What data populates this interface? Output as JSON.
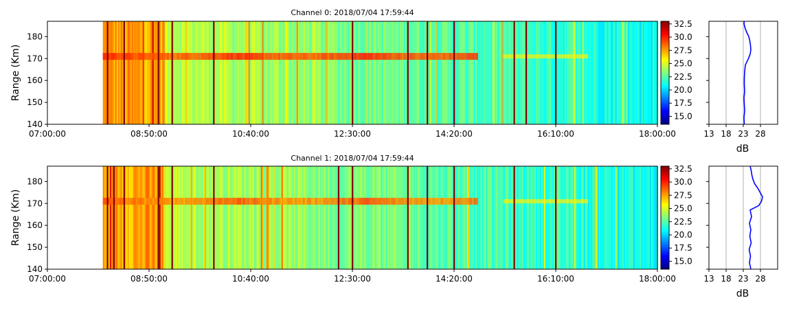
{
  "figure": {
    "colors": {
      "frame": "#000000",
      "grid": "#b0b0b0",
      "profile_line": "#0000ff",
      "background": "#ffffff"
    }
  },
  "chart_data": [
    {
      "type": "heatmap",
      "title": "Channel 0: 2018/07/04 17:59:44",
      "xlabel": "",
      "ylabel": "Range (Km)",
      "x_ticks": [
        "07:00:00",
        "08:50:00",
        "10:40:00",
        "12:30:00",
        "14:20:00",
        "16:10:00",
        "18:00:00"
      ],
      "x_range": [
        "07:00:00",
        "18:00:00"
      ],
      "data_start": "08:00:00",
      "y_ticks": [
        140,
        150,
        160,
        170,
        180
      ],
      "ylim": [
        140,
        187
      ],
      "colormap": "jet",
      "color_range": [
        13.5,
        33.0
      ],
      "colorbar_ticks": [
        "32.5",
        "30.0",
        "27.5",
        "25.0",
        "22.5",
        "20.0",
        "17.5",
        "15.0"
      ],
      "echo_layer": {
        "range_km": 171,
        "from": "08:00:00",
        "to": "14:45:00",
        "peak_db": 30.0
      },
      "strong_vertical_lines": [
        "08:05:00",
        "08:23:00",
        "09:00:00",
        "09:15:00",
        "10:00:00",
        "12:30:00",
        "13:30:00",
        "13:51:00",
        "14:20:00",
        "15:25:00",
        "15:38:00",
        "16:10:00"
      ],
      "profile": {
        "xlabel": "dB",
        "x_ticks": [
          13,
          18,
          23,
          28
        ],
        "xlim": [
          13,
          33
        ],
        "grid": true,
        "range_km": [
          140,
          143,
          146,
          149,
          152,
          155,
          158,
          161,
          164,
          167,
          170,
          172,
          174,
          176,
          178,
          180,
          182,
          184,
          186,
          187
        ],
        "values_db": [
          23.3,
          23.2,
          23.4,
          23.3,
          23.2,
          23.4,
          23.3,
          23.3,
          23.4,
          23.6,
          24.5,
          25.0,
          25.2,
          25.1,
          24.9,
          24.6,
          24.0,
          23.5,
          23.2,
          23.3
        ]
      }
    },
    {
      "type": "heatmap",
      "title": "Channel 1: 2018/07/04 17:59:44",
      "xlabel": "",
      "ylabel": "Range (Km)",
      "x_ticks": [
        "07:00:00",
        "08:50:00",
        "10:40:00",
        "12:30:00",
        "14:20:00",
        "16:10:00",
        "18:00:00"
      ],
      "x_range": [
        "07:00:00",
        "18:00:00"
      ],
      "data_start": "08:00:00",
      "y_ticks": [
        140,
        150,
        160,
        170,
        180
      ],
      "ylim": [
        140,
        187
      ],
      "colormap": "jet",
      "color_range": [
        13.5,
        33.0
      ],
      "colorbar_ticks": [
        "32.5",
        "30.0",
        "27.5",
        "25.0",
        "22.5",
        "20.0",
        "17.5",
        "15.0"
      ],
      "echo_layer": {
        "range_km": 171,
        "from": "08:00:00",
        "to": "14:45:00",
        "peak_db": 29.0
      },
      "strong_vertical_lines": [
        "08:05:00",
        "08:12:00",
        "08:23:00",
        "09:00:00",
        "09:15:00",
        "10:00:00",
        "12:15:00",
        "12:30:00",
        "13:30:00",
        "13:51:00",
        "14:20:00",
        "15:25:00",
        "16:10:00"
      ],
      "profile": {
        "xlabel": "dB",
        "x_ticks": [
          13,
          18,
          23,
          28
        ],
        "xlim": [
          13,
          33
        ],
        "grid": true,
        "range_km": [
          140,
          143,
          146,
          149,
          152,
          155,
          158,
          161,
          164,
          167,
          169,
          171,
          173,
          175,
          177,
          179,
          181,
          183,
          185,
          187
        ],
        "values_db": [
          25.2,
          24.8,
          25.1,
          24.7,
          25.3,
          24.9,
          25.2,
          24.8,
          25.4,
          25.0,
          27.5,
          28.3,
          28.6,
          27.9,
          27.2,
          26.3,
          25.8,
          25.5,
          25.3,
          25.0
        ]
      }
    }
  ]
}
